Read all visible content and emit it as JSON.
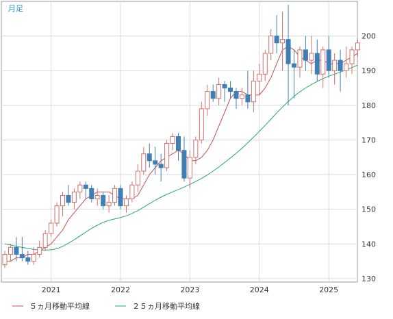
{
  "period_label": "月足",
  "colors": {
    "up": "#d36f6a",
    "down": "#3f7fb5",
    "ma5": "#c0504d",
    "ma25": "#2ea36c",
    "grid": "#d9d9d9",
    "frame": "#999999",
    "text": "#333333",
    "period": "#2a8fd6"
  },
  "chart_data": {
    "type": "candlestick",
    "title": "",
    "xlabel": "",
    "ylabel": "",
    "ylim": [
      129,
      210
    ],
    "yticks": [
      130,
      140,
      150,
      160,
      170,
      180,
      190,
      200
    ],
    "grid": true,
    "legend_position": "bottom-left",
    "x_ticks": [
      {
        "label": "2021",
        "index": 8
      },
      {
        "label": "2022",
        "index": 20
      },
      {
        "label": "2023",
        "index": 32
      },
      {
        "label": "2024",
        "index": 44
      },
      {
        "label": "2025",
        "index": 56
      }
    ],
    "candles": [
      [
        134,
        138,
        133,
        137
      ],
      [
        137,
        140,
        135,
        139
      ],
      [
        139,
        142,
        135,
        137
      ],
      [
        137,
        142,
        135,
        136
      ],
      [
        136,
        138,
        134,
        135
      ],
      [
        135,
        139,
        134,
        137
      ],
      [
        137,
        141,
        136,
        139
      ],
      [
        139,
        144,
        138,
        143
      ],
      [
        143,
        147,
        142,
        146
      ],
      [
        146,
        152,
        145,
        151
      ],
      [
        151,
        155,
        148,
        154
      ],
      [
        154,
        157,
        151,
        152
      ],
      [
        152,
        156,
        150,
        155
      ],
      [
        155,
        158,
        153,
        157
      ],
      [
        157,
        158,
        153,
        156
      ],
      [
        156,
        157,
        152,
        153
      ],
      [
        153,
        156,
        151,
        154
      ],
      [
        154,
        155,
        150,
        151
      ],
      [
        151,
        154,
        149,
        152
      ],
      [
        152,
        157,
        151,
        156
      ],
      [
        156,
        157,
        150,
        151
      ],
      [
        151,
        154,
        149,
        153
      ],
      [
        153,
        158,
        152,
        157
      ],
      [
        157,
        163,
        155,
        161
      ],
      [
        161,
        168,
        160,
        166
      ],
      [
        166,
        169,
        162,
        164
      ],
      [
        164,
        168,
        160,
        163
      ],
      [
        163,
        166,
        158,
        162
      ],
      [
        162,
        170,
        161,
        169
      ],
      [
        169,
        172,
        167,
        171
      ],
      [
        171,
        172,
        164,
        167
      ],
      [
        167,
        171,
        158,
        159
      ],
      [
        159,
        167,
        156,
        165
      ],
      [
        165,
        171,
        163,
        170
      ],
      [
        170,
        181,
        169,
        179
      ],
      [
        179,
        186,
        177,
        184
      ],
      [
        184,
        186,
        181,
        182
      ],
      [
        182,
        188,
        180,
        186
      ],
      [
        186,
        187,
        181,
        185
      ],
      [
        185,
        187,
        182,
        184
      ],
      [
        184,
        185,
        179,
        182
      ],
      [
        182,
        185,
        180,
        183
      ],
      [
        183,
        190,
        179,
        181
      ],
      [
        181,
        190,
        178,
        187
      ],
      [
        187,
        192,
        183,
        189
      ],
      [
        189,
        196,
        187,
        195
      ],
      [
        195,
        202,
        193,
        200
      ],
      [
        200,
        206,
        195,
        198
      ],
      [
        198,
        207,
        190,
        199
      ],
      [
        199,
        209,
        180,
        192
      ],
      [
        192,
        196,
        182,
        191
      ],
      [
        191,
        197,
        188,
        196
      ],
      [
        196,
        200,
        190,
        193
      ],
      [
        193,
        200,
        189,
        195
      ],
      [
        195,
        199,
        187,
        189
      ],
      [
        189,
        197,
        185,
        196
      ],
      [
        196,
        200,
        188,
        190
      ],
      [
        190,
        195,
        186,
        193
      ],
      [
        193,
        196,
        184,
        190
      ],
      [
        190,
        197,
        188,
        192
      ],
      [
        192,
        197,
        189,
        196
      ],
      [
        196,
        199,
        194,
        198
      ]
    ],
    "series": [
      {
        "name": "５ヵ月移動平均線",
        "color": "#c0504d",
        "values": [
          135,
          135,
          136,
          136,
          137,
          137,
          138,
          139,
          140,
          142,
          144,
          147,
          149,
          151,
          153,
          154,
          155,
          155,
          155,
          154,
          153,
          153,
          153,
          154,
          157,
          160,
          162,
          164,
          165,
          166,
          167,
          166,
          164,
          164,
          165,
          167,
          170,
          174,
          178,
          182,
          184,
          184,
          183,
          183,
          183,
          185,
          188,
          192,
          196,
          197,
          196,
          194,
          193,
          192,
          193,
          193,
          192,
          192,
          192,
          193,
          194,
          195
        ]
      },
      {
        "name": "２５ヵ月移動平均線",
        "color": "#2ea36c",
        "values": [
          140,
          139.7,
          139.3,
          139,
          138.7,
          138.4,
          138.2,
          138.2,
          138.3,
          138.6,
          139.3,
          140.2,
          141.2,
          142.3,
          143.4,
          144.5,
          145.4,
          146.2,
          146.8,
          147.2,
          147.6,
          148.1,
          148.8,
          149.6,
          150.6,
          151.6,
          152.6,
          153.5,
          154.3,
          155,
          155.7,
          156.4,
          157.2,
          158,
          158.9,
          159.9,
          161,
          162.2,
          163.5,
          164.8,
          166.2,
          167.6,
          169.2,
          170.8,
          172.5,
          174.2,
          176,
          177.8,
          179.5,
          181.1,
          182.6,
          183.9,
          185,
          186,
          186.9,
          187.7,
          188.4,
          189,
          189.6,
          190.2,
          190.9,
          191.6
        ]
      }
    ]
  }
}
